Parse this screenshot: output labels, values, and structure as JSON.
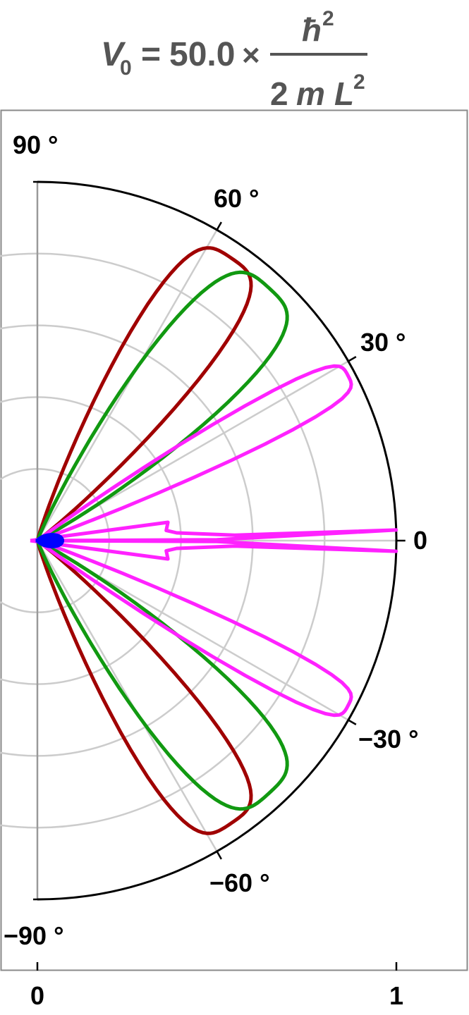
{
  "chart_data": {
    "type": "polar-line",
    "title": {
      "lhs": "V",
      "lhs_sub": "0",
      "equals": "=",
      "coefficient": "50.0",
      "times": "×",
      "numerator_symbol": "ħ",
      "numerator_sup": "2",
      "denominator_coef": "2",
      "denominator_mass": "m",
      "denominator_length": "L",
      "denominator_sup": "2"
    },
    "angle_range_deg": [
      -90,
      90
    ],
    "radius_range": [
      0,
      1
    ],
    "radial_grid": [
      0.2,
      0.4,
      0.6,
      0.8
    ],
    "angular_grid_deg": [
      -60,
      -30,
      30,
      60
    ],
    "grid": true,
    "angle_tick_labels": [
      {
        "deg": 90,
        "text": "90 °"
      },
      {
        "deg": 60,
        "text": "60 °"
      },
      {
        "deg": 30,
        "text": "30 °"
      },
      {
        "deg": 0,
        "text": "0"
      },
      {
        "deg": -30,
        "text": "−30 °"
      },
      {
        "deg": -60,
        "text": "−60 °"
      },
      {
        "deg": -90,
        "text": "−90 °"
      }
    ],
    "radial_tick_labels": [
      {
        "r": 0,
        "text": "0"
      },
      {
        "r": 1,
        "text": "1"
      }
    ],
    "series": [
      {
        "color": "#a00000",
        "shape": "lobes",
        "peak_r": 0.955,
        "peak_deg": 55.5,
        "width_deg": 8.5
      },
      {
        "color": "#119911",
        "shape": "lobes",
        "peak_r": 0.955,
        "peak_deg": 47.5,
        "width_deg": 9.5
      },
      {
        "color": "#ff22ff",
        "shape": "lobes",
        "peak_r": 0.98,
        "peak_deg": 28.0,
        "width_deg": 4.2
      },
      {
        "color": "#ff22ff",
        "shape": "forward-spike",
        "peak_r": 1.0,
        "peak_deg": 0.0,
        "inner_r": 0.36
      },
      {
        "color": "#0000ff",
        "shape": "blob",
        "peak_r": 0.07
      }
    ]
  }
}
